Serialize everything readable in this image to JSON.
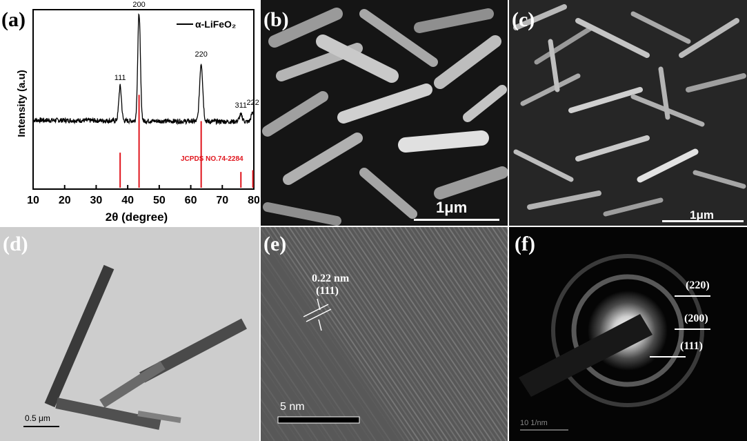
{
  "panels": {
    "a": {
      "label": "(a)"
    },
    "b": {
      "label": "(b)",
      "scale_bar": "1μm"
    },
    "c": {
      "label": "(c)",
      "scale_bar": "1μm"
    },
    "d": {
      "label": "(d)",
      "scale_bar": "0.5 μm"
    },
    "e": {
      "label": "(e)",
      "scale_bar": "5 nm",
      "spacing": "0.22 nm",
      "plane": "(111)"
    },
    "f": {
      "label": "(f)",
      "scale_bar": "10 1/nm",
      "rings": [
        "(220)",
        "(200)",
        "(111)"
      ]
    }
  },
  "colors": {
    "pattern": "#000000",
    "reference": "#e0141c",
    "reference_text": "#e0141c"
  },
  "chart_data": {
    "type": "line",
    "title": "",
    "xlabel": "2θ (degree)",
    "ylabel": "Intensity (a.u)",
    "xlim": [
      10,
      80
    ],
    "xticks": [
      10,
      20,
      30,
      40,
      50,
      60,
      70,
      80
    ],
    "y_ticks_shown": false,
    "legend": {
      "position": "top-right",
      "entries": [
        "α-LiFeO₂"
      ]
    },
    "series": [
      {
        "name": "α-LiFeO₂",
        "baseline": 0.22,
        "peaks": [
          {
            "x": 37.6,
            "intensity": 0.47,
            "label": "111"
          },
          {
            "x": 43.6,
            "intensity": 1.0,
            "label": "200"
          },
          {
            "x": 63.3,
            "intensity": 0.64,
            "label": "220"
          },
          {
            "x": 75.9,
            "intensity": 0.27,
            "label": "311"
          },
          {
            "x": 79.7,
            "intensity": 0.29,
            "label": "222"
          }
        ]
      }
    ],
    "reference": {
      "label": "JCPDS NO.74-2284",
      "x": [
        37.6,
        43.6,
        63.3,
        75.9,
        79.7
      ],
      "heights": [
        0.2,
        0.53,
        0.38,
        0.09,
        0.1
      ]
    }
  }
}
